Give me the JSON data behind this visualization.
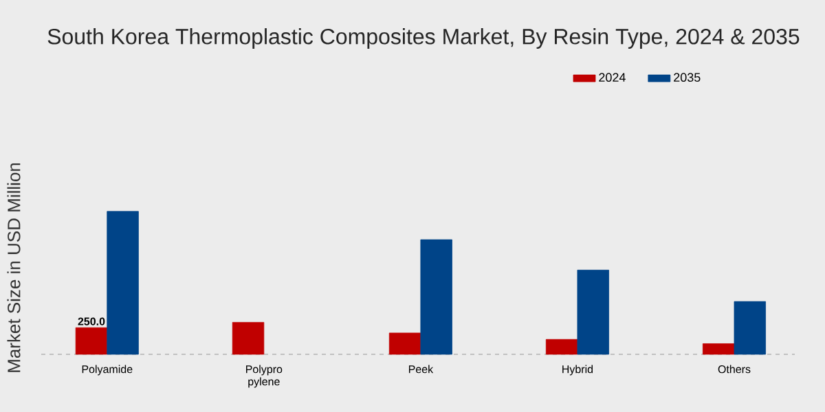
{
  "chart_data": {
    "type": "bar",
    "title": "South Korea Thermoplastic Composites Market, By Resin Type, 2024 & 2035",
    "ylabel": "Market Size in USD Million",
    "categories": [
      "Polyamide",
      "Polypro pylene",
      "Peek",
      "Hybrid",
      "Others"
    ],
    "series": [
      {
        "name": "2024",
        "color": "#c00000",
        "values": [
          250.0,
          300,
          200,
          140,
          100
        ],
        "value_labels": [
          "250.0",
          null,
          null,
          null,
          null
        ]
      },
      {
        "name": "2035",
        "color": "#004488",
        "values": [
          1340,
          null,
          1075,
          790,
          495
        ]
      }
    ],
    "legend": "top right"
  }
}
